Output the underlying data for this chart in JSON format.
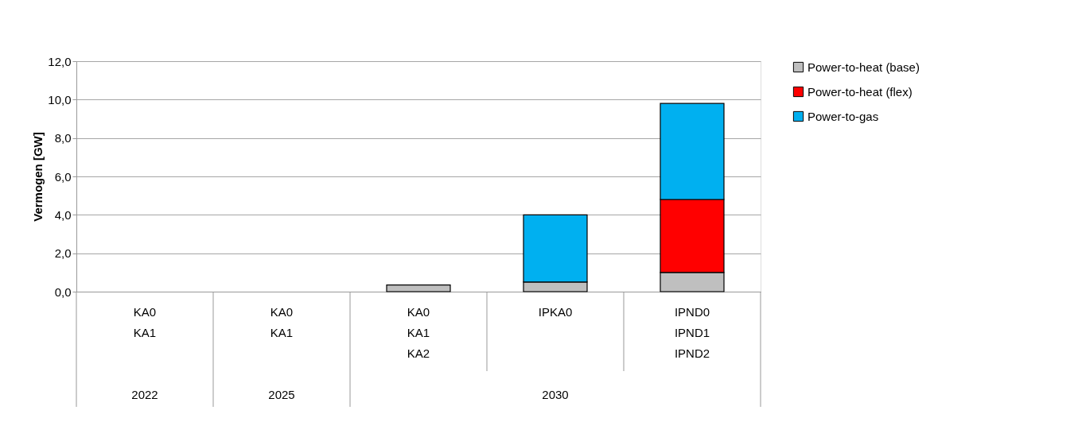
{
  "chart_data": {
    "type": "bar",
    "stacked": true,
    "ylabel": "Vermogen [GW]",
    "categories": [
      "KA0\nKA1",
      "KA0\nKA1",
      "KA0\nKA1\nKA2",
      "IPKA0",
      "IPND0\nIPND1\nIPND2"
    ],
    "series": [
      {
        "name": "Power-to-heat (base)",
        "color": "#bfbfbf",
        "values": [
          null,
          null,
          0.35,
          0.5,
          1.0
        ]
      },
      {
        "name": "Power-to-heat (flex)",
        "color": "#ff0000",
        "values": [
          null,
          null,
          null,
          null,
          3.8
        ]
      },
      {
        "name": "Power-to-gas",
        "color": "#00b0f0",
        "values": [
          null,
          null,
          null,
          3.5,
          5.0
        ]
      }
    ],
    "ylim": [
      0,
      12
    ],
    "yticks": [
      {
        "value": 0,
        "label": "0,0"
      },
      {
        "value": 2,
        "label": "2,0"
      },
      {
        "value": 4,
        "label": "4,0"
      },
      {
        "value": 6,
        "label": "6,0"
      },
      {
        "value": 8,
        "label": "8,0"
      },
      {
        "value": 10,
        "label": "10,0"
      },
      {
        "value": 12,
        "label": "12,0"
      }
    ],
    "annotations": [
      "2022",
      "2025",
      "2030"
    ],
    "grid": "y",
    "legend": "top right"
  }
}
